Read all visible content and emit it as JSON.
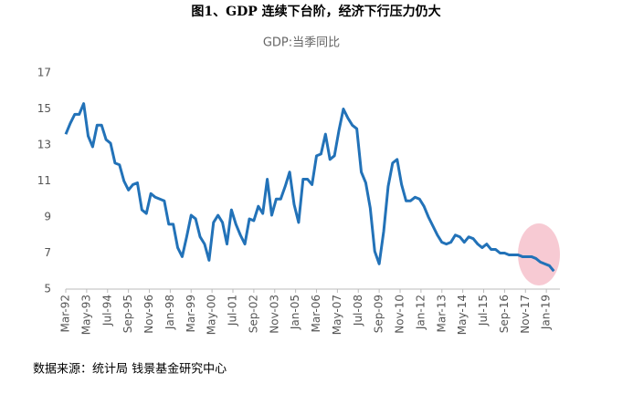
{
  "chart_data": {
    "type": "line",
    "title": "图1、GDP 连续下台阶，经济下行压力仍大",
    "subtitle": "GDP:当季同比",
    "source": "数据来源：统计局 钱景基金研究中心",
    "x": [
      "Mar-92",
      "Jun-92",
      "Sep-92",
      "Dec-92",
      "Mar-93",
      "Jun-93",
      "Sep-93",
      "Dec-93",
      "Mar-94",
      "Jun-94",
      "Sep-94",
      "Dec-94",
      "Mar-95",
      "Jun-95",
      "Sep-95",
      "Dec-95",
      "Mar-96",
      "Jun-96",
      "Sep-96",
      "Dec-96",
      "Mar-97",
      "Jun-97",
      "Sep-97",
      "Dec-97",
      "Mar-98",
      "Jun-98",
      "Sep-98",
      "Dec-98",
      "Mar-99",
      "Jun-99",
      "Sep-99",
      "Dec-99",
      "Mar-00",
      "Jun-00",
      "Sep-00",
      "Dec-00",
      "Mar-01",
      "Jun-01",
      "Sep-01",
      "Dec-01",
      "Mar-02",
      "Jun-02",
      "Sep-02",
      "Dec-02",
      "Mar-03",
      "Jun-03",
      "Sep-03",
      "Dec-03",
      "Mar-04",
      "Jun-04",
      "Sep-04",
      "Dec-04",
      "Mar-05",
      "Jun-05",
      "Sep-05",
      "Dec-05",
      "Mar-06",
      "Jun-06",
      "Sep-06",
      "Dec-06",
      "Mar-07",
      "Jun-07",
      "Sep-07",
      "Dec-07",
      "Mar-08",
      "Jun-08",
      "Sep-08",
      "Dec-08",
      "Mar-09",
      "Jun-09",
      "Sep-09",
      "Dec-09",
      "Mar-10",
      "Jun-10",
      "Sep-10",
      "Dec-10",
      "Mar-11",
      "Jun-11",
      "Sep-11",
      "Dec-11",
      "Mar-12",
      "Jun-12",
      "Sep-12",
      "Dec-12",
      "Mar-13",
      "Jun-13",
      "Sep-13",
      "Dec-13",
      "Mar-14",
      "Jun-14",
      "Sep-14",
      "Dec-14",
      "Mar-15",
      "Jun-15",
      "Sep-15",
      "Dec-15",
      "Mar-16",
      "Jun-16",
      "Sep-16",
      "Dec-16",
      "Mar-17",
      "Jun-17",
      "Sep-17",
      "Dec-17",
      "Mar-18",
      "Jun-18",
      "Sep-18",
      "Dec-18",
      "Mar-19",
      "Jun-19"
    ],
    "series": [
      {
        "name": "GDP:当季同比",
        "color": "#2272b8",
        "values": [
          13.6,
          14.2,
          14.7,
          14.7,
          15.3,
          13.5,
          12.9,
          14.1,
          14.1,
          13.3,
          13.1,
          12.0,
          11.9,
          11.0,
          10.5,
          10.8,
          10.9,
          9.4,
          9.2,
          10.3,
          10.1,
          10.0,
          9.9,
          8.6,
          8.6,
          7.3,
          6.8,
          7.9,
          9.1,
          8.9,
          7.9,
          7.5,
          6.6,
          8.7,
          9.1,
          8.7,
          7.5,
          9.4,
          8.6,
          8.0,
          7.5,
          8.9,
          8.8,
          9.6,
          9.2,
          11.1,
          9.1,
          10.0,
          10.0,
          10.7,
          11.5,
          9.7,
          8.7,
          11.1,
          11.1,
          10.8,
          12.4,
          12.5,
          13.6,
          12.2,
          12.4,
          13.8,
          15.0,
          14.5,
          14.1,
          13.9,
          11.5,
          10.9,
          9.5,
          7.1,
          6.4,
          8.2,
          10.7,
          12.0,
          12.2,
          10.8,
          9.9,
          9.9,
          10.1,
          10.0,
          9.6,
          9.0,
          8.5,
          8.0,
          7.6,
          7.5,
          7.6,
          8.0,
          7.9,
          7.6,
          7.9,
          7.8,
          7.5,
          7.3,
          7.5,
          7.2,
          7.2,
          7.0,
          7.0,
          6.9,
          6.9,
          6.9,
          6.8,
          6.8,
          6.8,
          6.7,
          6.5,
          6.4,
          6.3,
          6.0
        ]
      }
    ],
    "xticks": [
      "Mar-92",
      "May-93",
      "Jul-94",
      "Sep-95",
      "Nov-96",
      "Jan-98",
      "Mar-99",
      "May-00",
      "Jul-01",
      "Sep-02",
      "Nov-03",
      "Jan-05",
      "Mar-06",
      "May-07",
      "Jul-08",
      "Sep-09",
      "Nov-10",
      "Jan-12",
      "Mar-13",
      "May-14",
      "Jul-15",
      "Sep-16",
      "Nov-17",
      "Jan-19"
    ],
    "ylim": [
      5,
      17
    ],
    "yticks": [
      5,
      7,
      9,
      11,
      13,
      15,
      17
    ],
    "grid": false
  }
}
